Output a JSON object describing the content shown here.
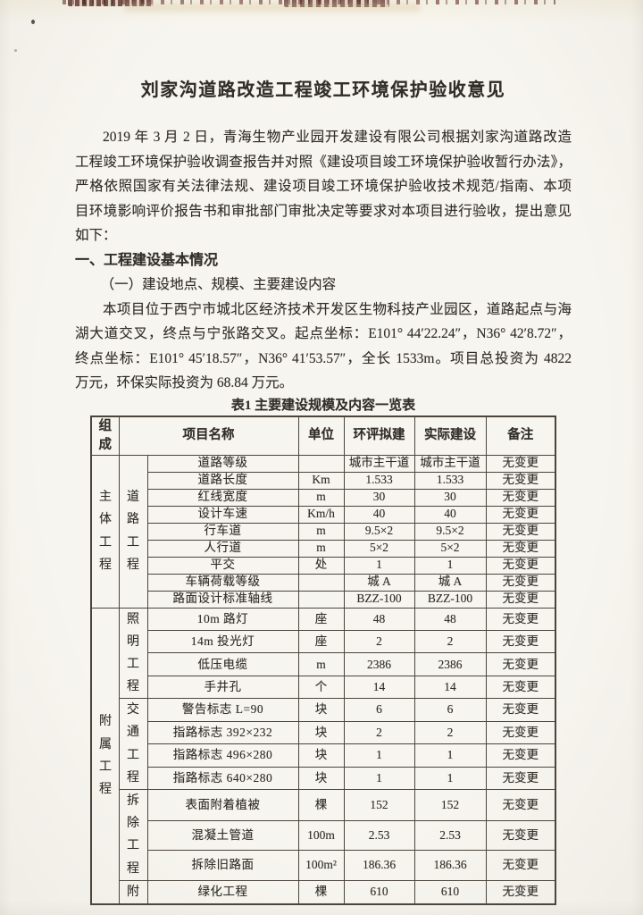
{
  "colors": {
    "paper": "#f7f5ef",
    "ink": "#312e29",
    "table_border": "#4a443b",
    "edge_mark_red": "#46241a"
  },
  "document": {
    "title": "刘家沟道路改造工程竣工环境保护验收意见",
    "p1_lines": [
      "2019 年 3 月 2 日，青海生物产业园开发建设有限公司根据刘家沟道路改造",
      "工程竣工环境保护验收调查报告并对照《建设项目竣工环境保护验收暂行办法》，",
      "严格依照国家有关法律法规、建设项目竣工环境保护验收技术规范/指南、本项",
      "目环境影响评价报告书和审批部门审批决定等要求对本项目进行验收，提出意见",
      "如下："
    ],
    "heading1": "一、工程建设基本情况",
    "subheading1": "（一）建设地点、规模、主要建设内容",
    "p2_lines": [
      "本项目位于西宁市城北区经济技术开发区生物科技产业园区，道路起点与海",
      "湖大道交叉，终点与宁张路交叉。起点坐标：E101° 44′22.24″，N36° 42′8.72″，",
      "终点坐标：E101° 45′18.57″，N36° 41′53.57″，全长 1533m。项目总投资为 4822",
      "万元，环保实际投资为 68.84 万元。"
    ],
    "table": {
      "caption": "表1  主要建设规模及内容一览表",
      "headers": {
        "composition": "组成",
        "name": "项目名称",
        "unit": "单位",
        "planned": "环评拟建",
        "actual": "实际建设",
        "note": "备注"
      },
      "groups": [
        {
          "label": "主体工程",
          "sections": [
            {
              "label": "道路工程",
              "rows": [
                {
                  "name": "道路等级",
                  "unit": "",
                  "planned": "城市主干道",
                  "actual": "城市主干道",
                  "note": "无变更"
                },
                {
                  "name": "道路长度",
                  "unit": "Km",
                  "planned": "1.533",
                  "actual": "1.533",
                  "note": "无变更"
                },
                {
                  "name": "红线宽度",
                  "unit": "m",
                  "planned": "30",
                  "actual": "30",
                  "note": "无变更"
                },
                {
                  "name": "设计车速",
                  "unit": "Km/h",
                  "planned": "40",
                  "actual": "40",
                  "note": "无变更"
                },
                {
                  "name": "行车道",
                  "unit": "m",
                  "planned": "9.5×2",
                  "actual": "9.5×2",
                  "note": "无变更"
                },
                {
                  "name": "人行道",
                  "unit": "m",
                  "planned": "5×2",
                  "actual": "5×2",
                  "note": "无变更"
                },
                {
                  "name": "平交",
                  "unit": "处",
                  "planned": "1",
                  "actual": "1",
                  "note": "无变更"
                },
                {
                  "name": "车辆荷载等级",
                  "unit": "",
                  "planned": "城 A",
                  "actual": "城 A",
                  "note": "无变更"
                },
                {
                  "name": "路面设计标准轴线",
                  "unit": "",
                  "planned": "BZZ-100",
                  "actual": "BZZ-100",
                  "note": "无变更"
                }
              ]
            }
          ]
        },
        {
          "label": "附属工程",
          "sections": [
            {
              "label": "照明工程",
              "rows": [
                {
                  "name": "10m 路灯",
                  "unit": "座",
                  "planned": "48",
                  "actual": "48",
                  "note": "无变更"
                },
                {
                  "name": "14m 投光灯",
                  "unit": "座",
                  "planned": "2",
                  "actual": "2",
                  "note": "无变更"
                },
                {
                  "name": "低压电缆",
                  "unit": "m",
                  "planned": "2386",
                  "actual": "2386",
                  "note": "无变更"
                },
                {
                  "name": "手井孔",
                  "unit": "个",
                  "planned": "14",
                  "actual": "14",
                  "note": "无变更"
                }
              ]
            },
            {
              "label": "交通工程",
              "rows": [
                {
                  "name": "警告标志 L=90",
                  "unit": "块",
                  "planned": "6",
                  "actual": "6",
                  "note": "无变更"
                },
                {
                  "name": "指路标志 392×232",
                  "unit": "块",
                  "planned": "2",
                  "actual": "2",
                  "note": "无变更"
                },
                {
                  "name": "指路标志 496×280",
                  "unit": "块",
                  "planned": "1",
                  "actual": "1",
                  "note": "无变更"
                },
                {
                  "name": "指路标志 640×280",
                  "unit": "块",
                  "planned": "1",
                  "actual": "1",
                  "note": "无变更"
                }
              ]
            },
            {
              "label": "拆除工程",
              "rows": [
                {
                  "name": "表面附着植被",
                  "unit": "棵",
                  "planned": "152",
                  "actual": "152",
                  "note": "无变更"
                },
                {
                  "name": "混凝土管道",
                  "unit": "100m",
                  "planned": "2.53",
                  "actual": "2.53",
                  "note": "无变更"
                },
                {
                  "name": "拆除旧路面",
                  "unit": "100m²",
                  "planned": "186.36",
                  "actual": "186.36",
                  "note": "无变更"
                }
              ]
            },
            {
              "label": "附",
              "rows": [
                {
                  "name": "绿化工程",
                  "unit": "棵",
                  "planned": "610",
                  "actual": "610",
                  "note": "无变更"
                }
              ]
            }
          ]
        }
      ]
    }
  }
}
